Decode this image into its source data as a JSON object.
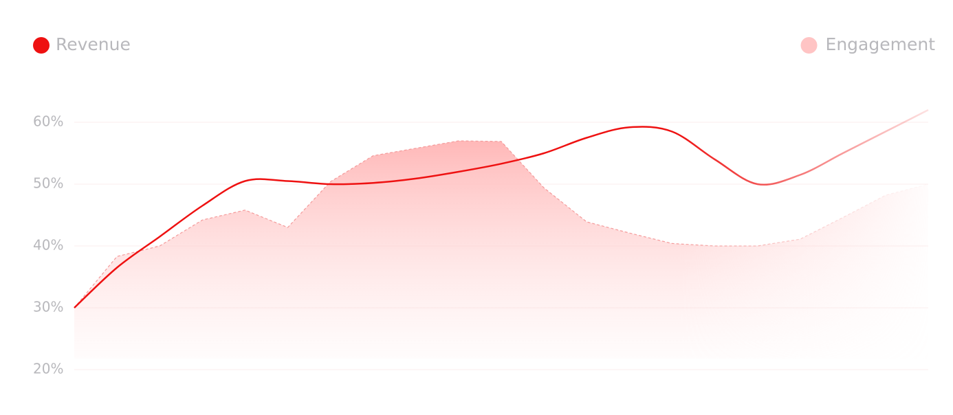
{
  "chart_data": {
    "type": "line",
    "categories": [
      null,
      null,
      null,
      null,
      null,
      null,
      null,
      null,
      null,
      null,
      null,
      null,
      null,
      null,
      null,
      null,
      null,
      null,
      null,
      null,
      null
    ],
    "series": [
      {
        "name": "Revenue",
        "color": "#ee1111",
        "style": "smooth",
        "values": [
          30,
          36.5,
          41.5,
          46.5,
          50.5,
          50.5,
          50,
          50.2,
          50.9,
          52,
          53.3,
          55,
          57.5,
          59.2,
          58.5,
          54,
          50,
          51.5,
          55,
          58.5,
          62
        ]
      },
      {
        "name": "Engagement",
        "color": "#ffc4c4",
        "style": "area",
        "values": [
          30,
          38.3,
          40,
          44.2,
          45.8,
          43,
          50.4,
          54.6,
          55.8,
          57,
          56.9,
          49.4,
          43.9,
          42.1,
          40.4,
          40,
          40,
          41.1,
          44.6,
          48.2,
          50
        ]
      }
    ],
    "ylim": [
      20,
      64
    ],
    "yticks": [
      {
        "value": 20,
        "label": "20%"
      },
      {
        "value": 30,
        "label": "30%"
      },
      {
        "value": 40,
        "label": "40%"
      },
      {
        "value": 50,
        "label": "50%"
      },
      {
        "value": 60,
        "label": "60%"
      }
    ],
    "grid": true
  }
}
